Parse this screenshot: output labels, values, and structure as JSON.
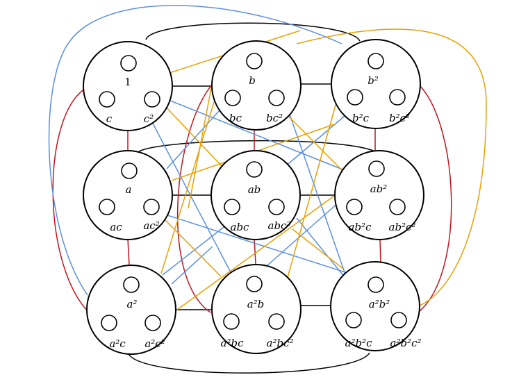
{
  "colors": {
    "black": "#000000",
    "red": "#c0141c",
    "blue": "#5a8fe0",
    "orange": "#e8a000"
  },
  "nodes": [
    {
      "id": "1",
      "labels": {
        "top": "1",
        "left": "c",
        "right": "c²"
      }
    },
    {
      "id": "b",
      "labels": {
        "top": "b",
        "left": "bc",
        "right": "bc²"
      }
    },
    {
      "id": "b2",
      "labels": {
        "top": "b²",
        "left": "b²c",
        "right": "b²c²"
      }
    },
    {
      "id": "a",
      "labels": {
        "top": "a",
        "left": "ac",
        "right": "ac²"
      }
    },
    {
      "id": "ab",
      "labels": {
        "top": "ab",
        "left": "abc",
        "right": "abc²"
      }
    },
    {
      "id": "ab2",
      "labels": {
        "top": "ab²",
        "left": "ab²c",
        "right": "ab²c²"
      }
    },
    {
      "id": "a2",
      "labels": {
        "top": "a²",
        "left": "a²c",
        "right": "a²c²"
      }
    },
    {
      "id": "a2b",
      "labels": {
        "top": "a²b",
        "left": "a²bc",
        "right": "a²bc²"
      }
    },
    {
      "id": "a2b2",
      "labels": {
        "top": "a²b²",
        "left": "a²b²c",
        "right": "a²b²c²"
      }
    }
  ]
}
